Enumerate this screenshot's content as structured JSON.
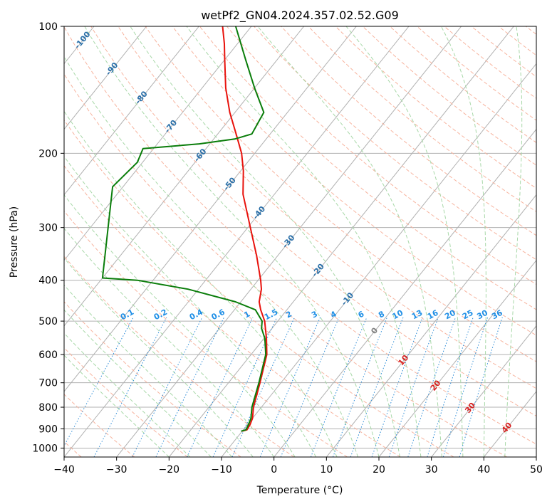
{
  "chart_data": {
    "type": "line",
    "title": "wetPf2_GN04.2024.357.02.52.G09",
    "xlabel": "Temperature (°C)",
    "ylabel": "Pressure (hPa)",
    "xlim": [
      -40,
      50
    ],
    "ylim": [
      1050,
      100
    ],
    "y_scale": "log",
    "x_ticks": [
      "−40",
      "−30",
      "−20",
      "−10",
      "0",
      "10",
      "20",
      "30",
      "40",
      "50"
    ],
    "y_ticks": [
      {
        "p": 100,
        "label": "100"
      },
      {
        "p": 200,
        "label": "200"
      },
      {
        "p": 300,
        "label": "300"
      },
      {
        "p": 400,
        "label": "400"
      },
      {
        "p": 500,
        "label": "500"
      },
      {
        "p": 600,
        "label": "600"
      },
      {
        "p": 700,
        "label": "700"
      },
      {
        "p": 800,
        "label": "800"
      },
      {
        "p": 900,
        "label": "900"
      },
      {
        "p": 1000,
        "label": "1000"
      }
    ],
    "grid": true,
    "colors": {
      "temperature": "#e8120c",
      "dewpoint": "#0a7d0a",
      "isotherm": "#b0b0b0",
      "dry_adiabat": "#f7b49f",
      "moist_adiabat": "#a8d8a8",
      "mixing_ratio": "#2a8ad6",
      "mixing_label": "#1f8fe6",
      "isotherm_label_neg": "#2a6fa8",
      "isotherm_label_pos": "#d62020",
      "isotherm_label_zero": "#808080"
    },
    "isotherm_labels": [
      {
        "t": -100,
        "text": "-100"
      },
      {
        "t": -90,
        "text": "-90"
      },
      {
        "t": -80,
        "text": "-80"
      },
      {
        "t": -70,
        "text": "-70"
      },
      {
        "t": -60,
        "text": "-60"
      },
      {
        "t": -50,
        "text": "-50"
      },
      {
        "t": -40,
        "text": "-40"
      },
      {
        "t": -30,
        "text": "-30"
      },
      {
        "t": -20,
        "text": "-20"
      },
      {
        "t": -10,
        "text": "-10"
      },
      {
        "t": 0,
        "text": "0"
      },
      {
        "t": 10,
        "text": "10"
      },
      {
        "t": 20,
        "text": "20"
      },
      {
        "t": 30,
        "text": "30"
      },
      {
        "t": 40,
        "text": "40"
      }
    ],
    "mixing_ratio_labels": [
      "0.1",
      "0.2",
      "0.4",
      "0.6",
      "1",
      "1.5",
      "2",
      "3",
      "4",
      "6",
      "8",
      "10",
      "13",
      "16",
      "20",
      "25",
      "30",
      "36"
    ],
    "series": [
      {
        "key": "temperature",
        "points": [
          [
            912,
            -10.0
          ],
          [
            905,
            -9.3
          ],
          [
            880,
            -9.5
          ],
          [
            850,
            -10.0
          ],
          [
            800,
            -11.5
          ],
          [
            700,
            -14.0
          ],
          [
            600,
            -17.0
          ],
          [
            550,
            -19.5
          ],
          [
            500,
            -22.5
          ],
          [
            470,
            -25.0
          ],
          [
            450,
            -26.5
          ],
          [
            420,
            -28.0
          ],
          [
            400,
            -29.5
          ],
          [
            350,
            -34.0
          ],
          [
            300,
            -39.5
          ],
          [
            250,
            -46.0
          ],
          [
            220,
            -49.5
          ],
          [
            200,
            -52.5
          ],
          [
            180,
            -56.5
          ],
          [
            160,
            -61.0
          ],
          [
            140,
            -65.5
          ],
          [
            120,
            -70.0
          ],
          [
            110,
            -72.5
          ],
          [
            100,
            -75.5
          ]
        ]
      },
      {
        "key": "dewpoint",
        "points": [
          [
            912,
            -10.2
          ],
          [
            905,
            -9.5
          ],
          [
            880,
            -9.8
          ],
          [
            850,
            -10.3
          ],
          [
            800,
            -11.8
          ],
          [
            700,
            -14.2
          ],
          [
            600,
            -17.2
          ],
          [
            550,
            -19.8
          ],
          [
            520,
            -22.0
          ],
          [
            500,
            -23.0
          ],
          [
            470,
            -26.0
          ],
          [
            450,
            -31.0
          ],
          [
            420,
            -42.0
          ],
          [
            400,
            -53.0
          ],
          [
            395,
            -60.0
          ],
          [
            240,
            -72.0
          ],
          [
            210,
            -71.0
          ],
          [
            195,
            -72.0
          ],
          [
            190,
            -62.0
          ],
          [
            185,
            -56.0
          ],
          [
            180,
            -53.5
          ],
          [
            160,
            -54.5
          ],
          [
            140,
            -60.0
          ],
          [
            120,
            -66.0
          ],
          [
            100,
            -73.0
          ]
        ]
      }
    ]
  }
}
